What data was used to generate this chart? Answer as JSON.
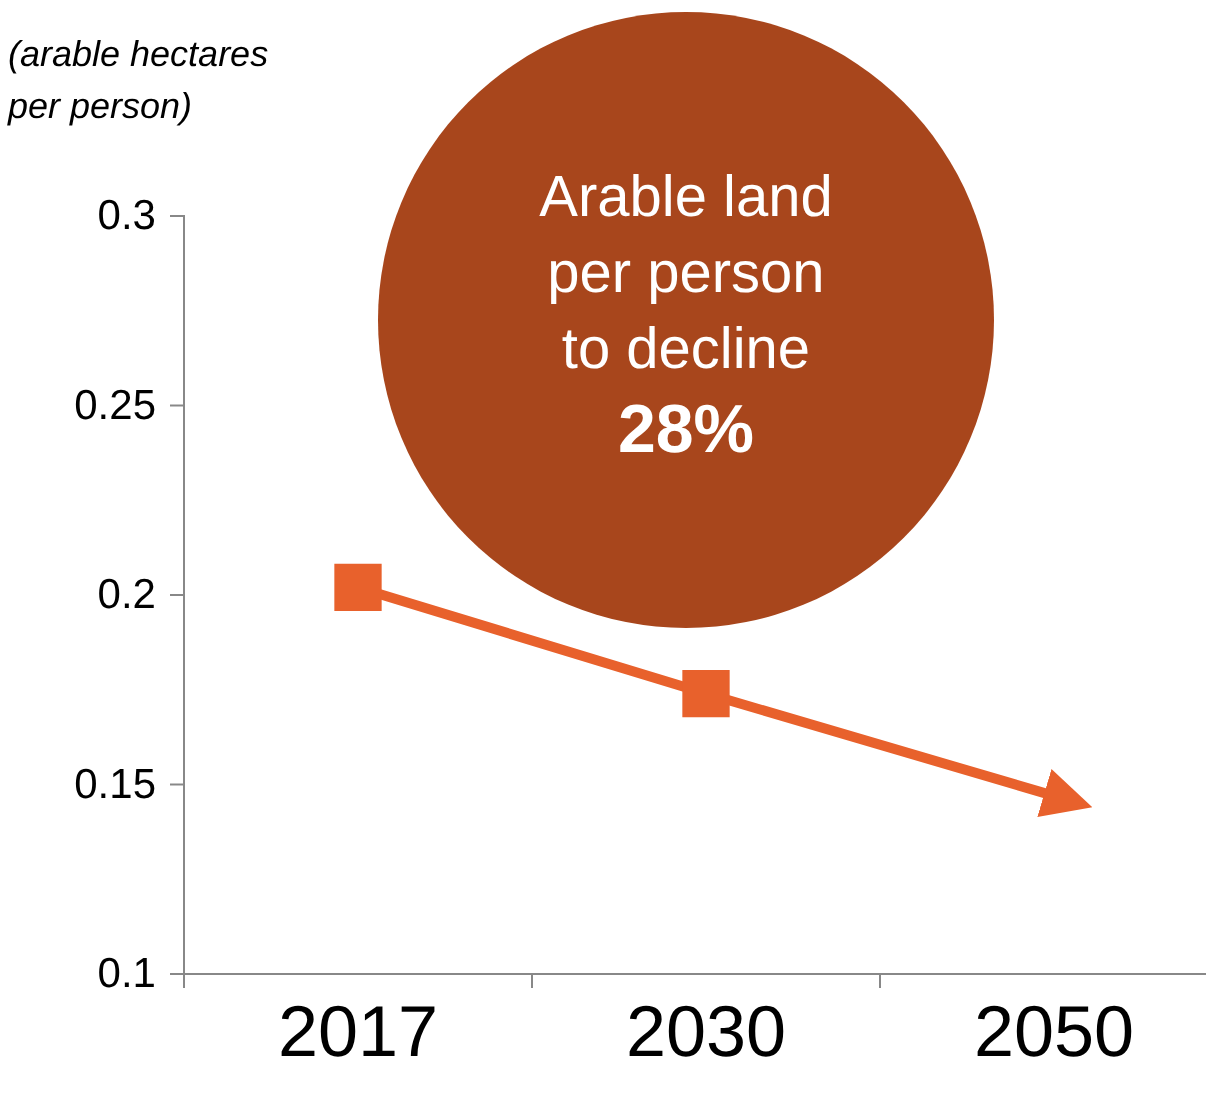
{
  "chart_data": {
    "type": "line",
    "ylabel": "(arable hectares per person)",
    "categories": [
      "2017",
      "2030",
      "2050"
    ],
    "series": [
      {
        "color": "#e8612c",
        "values": [
          0.202,
          0.174,
          0.147
        ]
      }
    ],
    "ylim": [
      0.1,
      0.3
    ],
    "yticks": [
      0.1,
      0.15,
      0.2,
      0.25,
      0.3
    ],
    "marker": "square",
    "line_style": "solid",
    "grid": false,
    "annotations": [
      "Arable land per person to decline",
      "28%"
    ]
  }
}
